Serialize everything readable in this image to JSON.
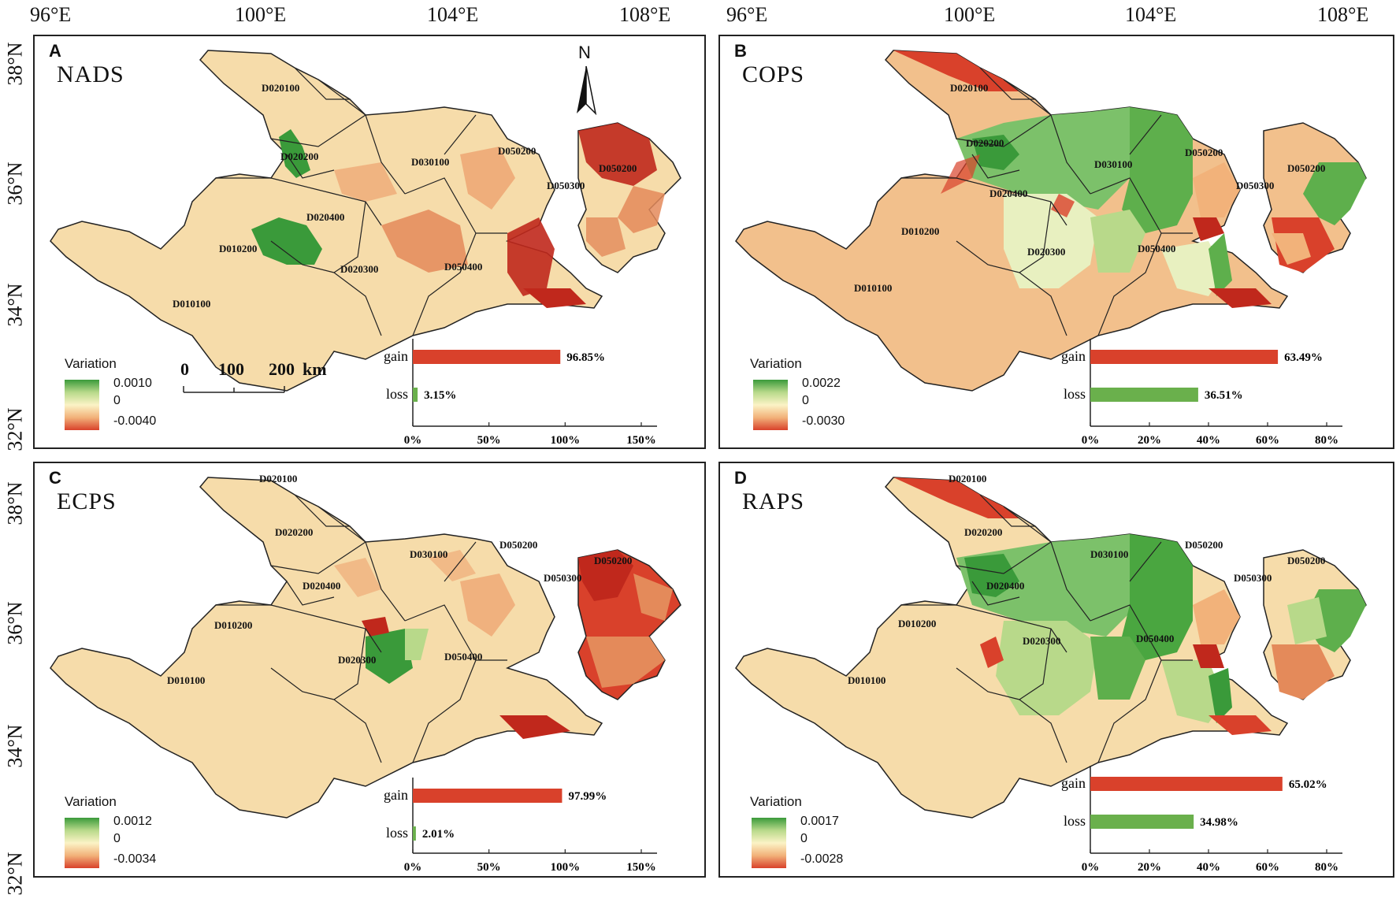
{
  "lon_labels": [
    "96°E",
    "100°E",
    "104°E",
    "108°E"
  ],
  "lat_labels": [
    "38°N",
    "36°N",
    "34°N",
    "32°N"
  ],
  "colors": {
    "gain": "#d9412b",
    "loss": "#6ab04c",
    "base": "#f6dcaa",
    "green_dark": "#3a9a3a",
    "red_dark": "#c0281c"
  },
  "north_label": "N",
  "scalebar": {
    "ticks": [
      "0",
      "100",
      "200"
    ],
    "unit": "km"
  },
  "region_labels": {
    "D010100": "D010100",
    "D010200": "D010200",
    "D020100": "D020100",
    "D020200": "D020200",
    "D020300": "D020300",
    "D020400": "D020400",
    "D030100": "D030100",
    "D050200a": "D050200",
    "D050200b": "D050200",
    "D050300": "D050300",
    "D050400": "D050400"
  },
  "panels": [
    {
      "letter": "A",
      "title": "NADS",
      "legend_title": "Variation",
      "legend_max": "0.0010",
      "legend_mid": "0",
      "legend_min": "-0.0040",
      "inset": {
        "gain_label": "gain",
        "loss_label": "loss",
        "gain_value": 96.85,
        "loss_value": 3.15,
        "gain_text": "96.85%",
        "loss_text": "3.15%",
        "axis_max": 150,
        "ticks": [
          "0%",
          "50%",
          "100%",
          "150%"
        ]
      }
    },
    {
      "letter": "B",
      "title": "COPS",
      "legend_title": "Variation",
      "legend_max": "0.0022",
      "legend_mid": "0",
      "legend_min": "-0.0030",
      "inset": {
        "gain_label": "gain",
        "loss_label": "loss",
        "gain_value": 63.49,
        "loss_value": 36.51,
        "gain_text": "63.49%",
        "loss_text": "36.51%",
        "axis_max": 80,
        "ticks": [
          "0%",
          "20%",
          "40%",
          "60%",
          "80%"
        ]
      }
    },
    {
      "letter": "C",
      "title": "ECPS",
      "legend_title": "Variation",
      "legend_max": "0.0012",
      "legend_mid": "0",
      "legend_min": "-0.0034",
      "inset": {
        "gain_label": "gain",
        "loss_label": "loss",
        "gain_value": 97.99,
        "loss_value": 2.01,
        "gain_text": "97.99%",
        "loss_text": "2.01%",
        "axis_max": 150,
        "ticks": [
          "0%",
          "50%",
          "100%",
          "150%"
        ]
      }
    },
    {
      "letter": "D",
      "title": "RAPS",
      "legend_title": "Variation",
      "legend_max": "0.0017",
      "legend_mid": "0",
      "legend_min": "-0.0028",
      "inset": {
        "gain_label": "gain",
        "loss_label": "loss",
        "gain_value": 65.02,
        "loss_value": 34.98,
        "gain_text": "65.02%",
        "loss_text": "34.98%",
        "axis_max": 80,
        "ticks": [
          "0%",
          "20%",
          "40%",
          "60%",
          "80%"
        ]
      }
    }
  ]
}
